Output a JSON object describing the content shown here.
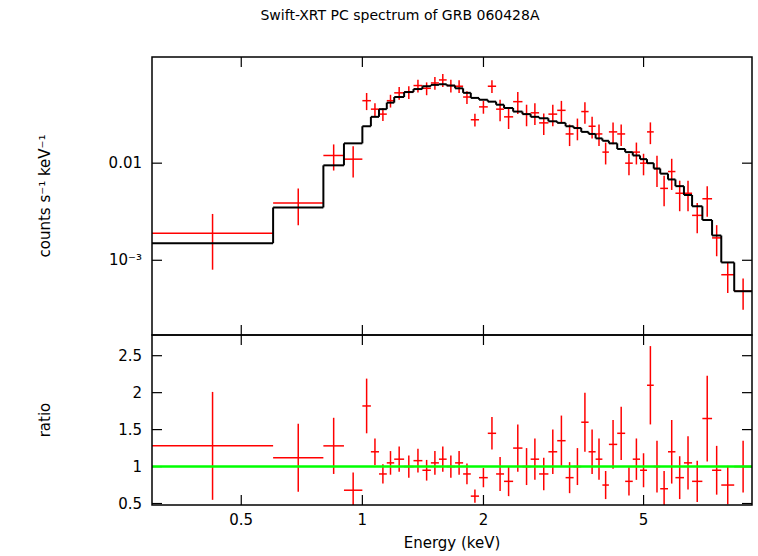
{
  "chart_data": [
    {
      "type": "scatter",
      "title": "Swift-XRT PC spectrum of GRB 060428A",
      "y_label": "counts s⁻¹ keV⁻¹",
      "log": true,
      "tick_labels": "y",
      "xlim": [
        0.3,
        9.3
      ],
      "ylim": [
        0.00017,
        0.124
      ],
      "xticks": [
        0.5,
        1,
        2,
        5
      ],
      "yticks": [
        {
          "value": 0.001,
          "label": "10⁻³"
        },
        0.01
      ],
      "bins": [
        0.3,
        0.6,
        0.8,
        0.9,
        1.0,
        1.05,
        1.1,
        1.15,
        1.2,
        1.27,
        1.34,
        1.41,
        1.48,
        1.55,
        1.62,
        1.7,
        1.78,
        1.86,
        1.95,
        2.05,
        2.15,
        2.25,
        2.37,
        2.5,
        2.62,
        2.75,
        2.9,
        3.05,
        3.2,
        3.35,
        3.5,
        3.65,
        3.8,
        3.95,
        4.1,
        4.3,
        4.5,
        4.7,
        4.9,
        5.1,
        5.3,
        5.5,
        5.75,
        6.0,
        6.3,
        6.6,
        7.0,
        7.4,
        7.8,
        8.4,
        9.3
      ],
      "series": [
        {
          "type": "scatter",
          "color": "#ff0000",
          "values": [
            0.0019,
            0.0039,
            0.012,
            0.011,
            0.044,
            0.036,
            0.032,
            0.044,
            0.053,
            0.054,
            0.063,
            0.059,
            0.067,
            0.072,
            0.063,
            0.062,
            0.048,
            0.028,
            0.038,
            0.062,
            0.036,
            0.03,
            0.043,
            0.032,
            0.033,
            0.026,
            0.032,
            0.035,
            0.02,
            0.023,
            0.034,
            0.024,
            0.02,
            0.013,
            0.021,
            0.02,
            0.01,
            0.013,
            0.01,
            0.021,
            0.0088,
            0.0055,
            0.0082,
            0.0049,
            0.0049,
            0.0029,
            0.0043,
            0.0017,
            0.00071,
            0.00048
          ],
          "errors": [
            0.0011,
            0.0016,
            0.0036,
            0.0039,
            0.0088,
            0.0054,
            0.0048,
            0.0066,
            0.008,
            0.0081,
            0.0095,
            0.0089,
            0.01,
            0.011,
            0.0095,
            0.0093,
            0.0072,
            0.0042,
            0.0057,
            0.0093,
            0.009,
            0.0075,
            0.011,
            0.008,
            0.0083,
            0.0065,
            0.008,
            0.0088,
            0.005,
            0.0058,
            0.0085,
            0.006,
            0.005,
            0.0033,
            0.0053,
            0.005,
            0.0025,
            0.0033,
            0.0025,
            0.0053,
            0.0031,
            0.0019,
            0.0029,
            0.0017,
            0.0017,
            0.001,
            0.0015,
            0.0006,
            0.00025,
            0.00017
          ]
        },
        {
          "type": "step",
          "color": "#000000",
          "values": [
            0.0015,
            0.0035,
            0.0095,
            0.016,
            0.024,
            0.03,
            0.036,
            0.042,
            0.048,
            0.054,
            0.058,
            0.062,
            0.064,
            0.065,
            0.063,
            0.059,
            0.053,
            0.047,
            0.045,
            0.043,
            0.04,
            0.037,
            0.034,
            0.032,
            0.03,
            0.029,
            0.027,
            0.026,
            0.024,
            0.023,
            0.021,
            0.02,
            0.018,
            0.017,
            0.016,
            0.014,
            0.013,
            0.012,
            0.011,
            0.01,
            0.0088,
            0.0078,
            0.0068,
            0.0058,
            0.0047,
            0.0036,
            0.0026,
            0.0018,
            0.00095,
            0.00048
          ]
        }
      ]
    },
    {
      "type": "scatter",
      "x_label": "Energy (keV)",
      "y_label": "ratio",
      "log": "x",
      "xlim": [
        0.3,
        9.3
      ],
      "ylim": [
        0.48,
        2.78
      ],
      "xticks": [
        0.5,
        1,
        2,
        5
      ],
      "yticks": [
        0.5,
        1,
        1.5,
        2,
        2.5
      ],
      "bins": [
        0.3,
        0.6,
        0.8,
        0.9,
        1.0,
        1.05,
        1.1,
        1.15,
        1.2,
        1.27,
        1.34,
        1.41,
        1.48,
        1.55,
        1.62,
        1.7,
        1.78,
        1.86,
        1.95,
        2.05,
        2.15,
        2.25,
        2.37,
        2.5,
        2.62,
        2.75,
        2.9,
        3.05,
        3.2,
        3.35,
        3.5,
        3.65,
        3.8,
        3.95,
        4.1,
        4.3,
        4.5,
        4.7,
        4.9,
        5.1,
        5.3,
        5.5,
        5.75,
        6.0,
        6.3,
        6.6,
        7.0,
        7.4,
        7.8,
        8.4,
        9.3
      ],
      "series": [
        {
          "type": "scatter",
          "color": "#ff0000",
          "values": [
            1.28,
            1.12,
            1.28,
            0.68,
            1.82,
            1.2,
            0.9,
            1.05,
            1.1,
            1.0,
            1.08,
            0.95,
            1.05,
            1.1,
            1.0,
            1.05,
            0.9,
            0.6,
            0.85,
            1.45,
            0.9,
            0.8,
            1.25,
            1.0,
            1.1,
            0.9,
            1.2,
            1.35,
            0.85,
            1.0,
            1.6,
            1.2,
            1.1,
            0.75,
            1.3,
            1.45,
            0.8,
            1.1,
            0.95,
            2.1,
            1.0,
            0.7,
            1.2,
            0.85,
            1.05,
            0.8,
            1.65,
            0.95,
            0.75,
            1.0
          ],
          "errors": [
            0.73,
            0.46,
            0.38,
            0.24,
            0.37,
            0.18,
            0.13,
            0.16,
            0.17,
            0.15,
            0.16,
            0.14,
            0.16,
            0.17,
            0.15,
            0.16,
            0.14,
            0.09,
            0.13,
            0.22,
            0.23,
            0.2,
            0.32,
            0.25,
            0.28,
            0.22,
            0.3,
            0.34,
            0.21,
            0.25,
            0.4,
            0.3,
            0.28,
            0.19,
            0.33,
            0.36,
            0.19,
            0.28,
            0.23,
            0.53,
            0.35,
            0.24,
            0.43,
            0.29,
            0.36,
            0.28,
            0.58,
            0.33,
            0.26,
            0.35
          ]
        },
        {
          "type": "line",
          "color": "#00ff00",
          "x": [
            0.3,
            9.3
          ],
          "values": [
            1,
            1
          ]
        }
      ]
    }
  ]
}
